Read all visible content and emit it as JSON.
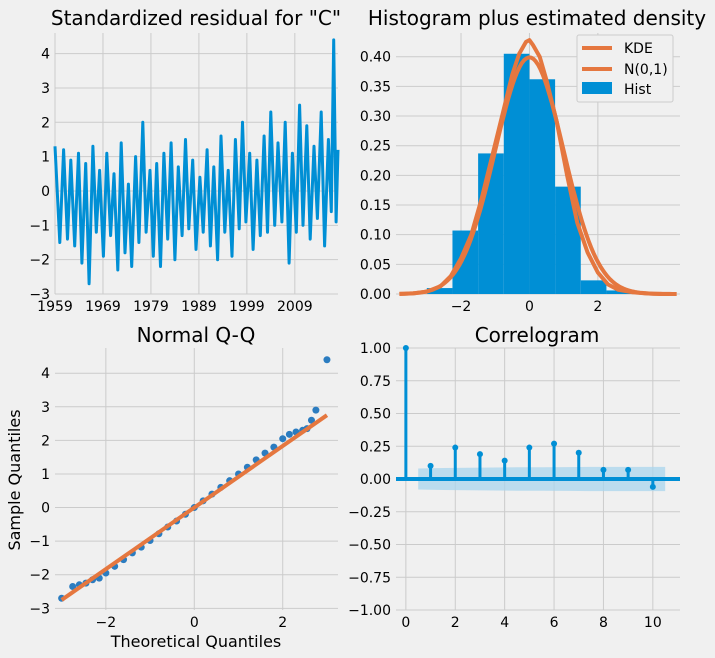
{
  "colors": {
    "background": "#f0f0f0",
    "grid": "#cbcbcb",
    "blue": "#008fd5",
    "orange": "#e5773f",
    "band": "#a9d6ee"
  },
  "chart_data": [
    {
      "id": "resid",
      "type": "line",
      "title": "Standardized residual for \"C\"",
      "xlabel": "",
      "ylabel": "",
      "xlim": [
        1959,
        2018
      ],
      "ylim": [
        -3,
        4.6
      ],
      "xticks": [
        1959,
        1969,
        1979,
        1989,
        1999,
        2009
      ],
      "xtick_labels": [
        "1959",
        "1969",
        "1979",
        "1989",
        "1999",
        "2009"
      ],
      "yticks": [
        -3,
        -2,
        -1,
        0,
        1,
        2,
        3,
        4
      ],
      "ytick_labels": [
        "−3",
        "−2",
        "−1",
        "0",
        "1",
        "2",
        "3",
        "4"
      ],
      "grid": true,
      "series": [
        {
          "x": [
            1959.0,
            1960.0,
            1960.8,
            1961.6,
            1962.3,
            1963.1,
            1963.9,
            1964.6,
            1965.4,
            1966.1,
            1966.9,
            1967.6,
            1968.3,
            1969.1,
            1969.8,
            1970.6,
            1971.3,
            1972.1,
            1972.8,
            1973.6,
            1974.3,
            1975.0,
            1975.8,
            1976.5,
            1977.3,
            1978.0,
            1978.8,
            1979.5,
            1980.2,
            1981.0,
            1981.7,
            1982.5,
            1983.2,
            1984.0,
            1984.7,
            1985.5,
            1986.2,
            1986.9,
            1987.7,
            1988.4,
            1989.2,
            1989.9,
            1990.7,
            1991.4,
            1992.1,
            1992.9,
            1993.6,
            1994.4,
            1995.1,
            1995.9,
            1996.6,
            1997.4,
            1998.1,
            1998.8,
            1999.6,
            2000.3,
            2001.1,
            2001.8,
            2002.6,
            2003.3,
            2004.0,
            2004.8,
            2005.5,
            2006.3,
            2007.0,
            2007.8,
            2008.5,
            2009.3,
            2010.0,
            2010.7,
            2011.5,
            2012.2,
            2013.0,
            2013.7,
            2014.5,
            2015.2,
            2016.0,
            2016.6,
            2017.1,
            2017.6,
            2018.0
          ],
          "y": [
            1.3,
            -1.5,
            1.2,
            -1.4,
            0.9,
            -1.6,
            1.1,
            -2.1,
            0.8,
            -2.7,
            1.3,
            -1.2,
            0.6,
            -1.9,
            1.1,
            -1.3,
            0.5,
            -2.3,
            1.4,
            -1.8,
            0.2,
            -2.2,
            1.0,
            -1.5,
            2.0,
            -1.2,
            0.6,
            -1.9,
            0.8,
            -2.2,
            1.1,
            -1.4,
            1.4,
            -2.0,
            0.7,
            -1.3,
            1.5,
            -1.1,
            0.9,
            -1.7,
            0.4,
            -1.2,
            1.2,
            -1.6,
            0.7,
            -2.0,
            1.6,
            -1.2,
            0.6,
            -1.9,
            1.5,
            -1.1,
            2.0,
            -0.9,
            1.1,
            -1.7,
            0.9,
            -1.3,
            1.6,
            -1.2,
            2.3,
            -1.0,
            1.4,
            -0.9,
            2.0,
            -2.1,
            1.1,
            -1.2,
            2.5,
            -1.0,
            1.9,
            -1.4,
            1.3,
            -0.8,
            2.3,
            -1.6,
            1.5,
            -0.6,
            4.4,
            -0.9,
            1.2
          ]
        }
      ]
    },
    {
      "id": "hist",
      "type": "bar",
      "title": "Histogram plus estimated density",
      "xlim": [
        -3.9,
        4.4
      ],
      "ylim": [
        0,
        0.44
      ],
      "xticks": [
        -2,
        0,
        2
      ],
      "xtick_labels": [
        "−2",
        "0",
        "2"
      ],
      "yticks": [
        0,
        0.05,
        0.1,
        0.15,
        0.2,
        0.25,
        0.3,
        0.35,
        0.4
      ],
      "ytick_labels": [
        "0.00",
        "0.05",
        "0.10",
        "0.15",
        "0.20",
        "0.25",
        "0.30",
        "0.35",
        "0.40"
      ],
      "grid": true,
      "legend": {
        "position": "top-right",
        "entries": [
          "KDE",
          "N(0,1)",
          "Hist"
        ]
      },
      "bins": [
        {
          "from": -3.0,
          "to": -2.25,
          "value": 0.01
        },
        {
          "from": -2.25,
          "to": -1.5,
          "value": 0.107
        },
        {
          "from": -1.5,
          "to": -0.75,
          "value": 0.237
        },
        {
          "from": -0.75,
          "to": 0.0,
          "value": 0.405
        },
        {
          "from": 0.0,
          "to": 0.75,
          "value": 0.362
        },
        {
          "from": 0.75,
          "to": 1.5,
          "value": 0.181
        },
        {
          "from": 1.5,
          "to": 2.25,
          "value": 0.023
        },
        {
          "from": 2.25,
          "to": 3.0,
          "value": 0.006
        }
      ],
      "kde": {
        "x": [
          -3.8,
          -3.4,
          -3.0,
          -2.6,
          -2.3,
          -2.0,
          -1.7,
          -1.4,
          -1.1,
          -0.8,
          -0.5,
          -0.3,
          -0.1,
          0.0,
          0.1,
          0.3,
          0.5,
          0.8,
          1.1,
          1.4,
          1.7,
          2.0,
          2.3,
          2.6,
          3.0,
          3.4,
          3.8,
          4.3
        ],
        "y": [
          0.0,
          0.001,
          0.004,
          0.013,
          0.03,
          0.06,
          0.1,
          0.16,
          0.23,
          0.3,
          0.37,
          0.405,
          0.425,
          0.428,
          0.42,
          0.4,
          0.36,
          0.29,
          0.2,
          0.12,
          0.07,
          0.036,
          0.016,
          0.007,
          0.003,
          0.001,
          0.0,
          0.0
        ]
      },
      "normal": {
        "mean": 0,
        "sd": 1,
        "range": [
          -3.8,
          4.3
        ]
      }
    },
    {
      "id": "qq",
      "type": "scatter",
      "title": "Normal Q-Q",
      "xlabel": "Theoretical Quantiles",
      "ylabel": "Sample Quantiles",
      "xlim": [
        -3.15,
        3.25
      ],
      "ylim": [
        -3.05,
        4.75
      ],
      "xticks": [
        -2,
        0,
        2
      ],
      "xtick_labels": [
        "−2",
        "0",
        "2"
      ],
      "yticks": [
        -3,
        -2,
        -1,
        0,
        1,
        2,
        3,
        4
      ],
      "ytick_labels": [
        "−3",
        "−2",
        "−1",
        "0",
        "1",
        "2",
        "3",
        "4"
      ],
      "grid": true,
      "points": {
        "x": [
          -3.0,
          -2.75,
          -2.6,
          -2.45,
          -2.3,
          -2.15,
          -2.0,
          -1.8,
          -1.6,
          -1.4,
          -1.2,
          -1.0,
          -0.8,
          -0.6,
          -0.4,
          -0.2,
          0.0,
          0.2,
          0.4,
          0.6,
          0.8,
          1.0,
          1.2,
          1.4,
          1.6,
          1.8,
          2.0,
          2.15,
          2.3,
          2.45,
          2.55,
          2.65,
          2.75,
          3.0
        ],
        "y": [
          -2.7,
          -2.35,
          -2.3,
          -2.25,
          -2.15,
          -2.1,
          -1.95,
          -1.75,
          -1.55,
          -1.35,
          -1.18,
          -0.98,
          -0.78,
          -0.58,
          -0.4,
          -0.2,
          0.0,
          0.2,
          0.4,
          0.6,
          0.8,
          1.0,
          1.2,
          1.42,
          1.62,
          1.8,
          2.05,
          2.18,
          2.25,
          2.3,
          2.35,
          2.6,
          2.9,
          4.4
        ]
      },
      "reference_line": {
        "x": [
          -3.0,
          3.0
        ],
        "y": [
          -2.75,
          2.75
        ]
      }
    },
    {
      "id": "acf",
      "type": "bar",
      "title": "Correlogram",
      "xlim": [
        -0.4,
        11.1
      ],
      "ylim": [
        -1.0,
        1.0
      ],
      "xticks": [
        0,
        2,
        4,
        6,
        8,
        10
      ],
      "xtick_labels": [
        "0",
        "2",
        "4",
        "6",
        "8",
        "10"
      ],
      "yticks": [
        -1.0,
        -0.75,
        -0.5,
        -0.25,
        0.0,
        0.25,
        0.5,
        0.75,
        1.0
      ],
      "ytick_labels": [
        "−1.00",
        "−0.75",
        "−0.50",
        "−0.25",
        "0.00",
        "0.25",
        "0.50",
        "0.75",
        "1.00"
      ],
      "grid": true,
      "lags": [
        0,
        1,
        2,
        3,
        4,
        5,
        6,
        7,
        8,
        9,
        10
      ],
      "values": [
        1.0,
        0.1,
        0.24,
        0.19,
        0.14,
        0.24,
        0.27,
        0.2,
        0.07,
        0.07,
        -0.06
      ],
      "confidence_band": [
        0,
        0.08,
        0.084,
        0.086,
        0.088,
        0.089,
        0.09,
        0.091,
        0.092,
        0.092,
        0.092
      ]
    }
  ]
}
